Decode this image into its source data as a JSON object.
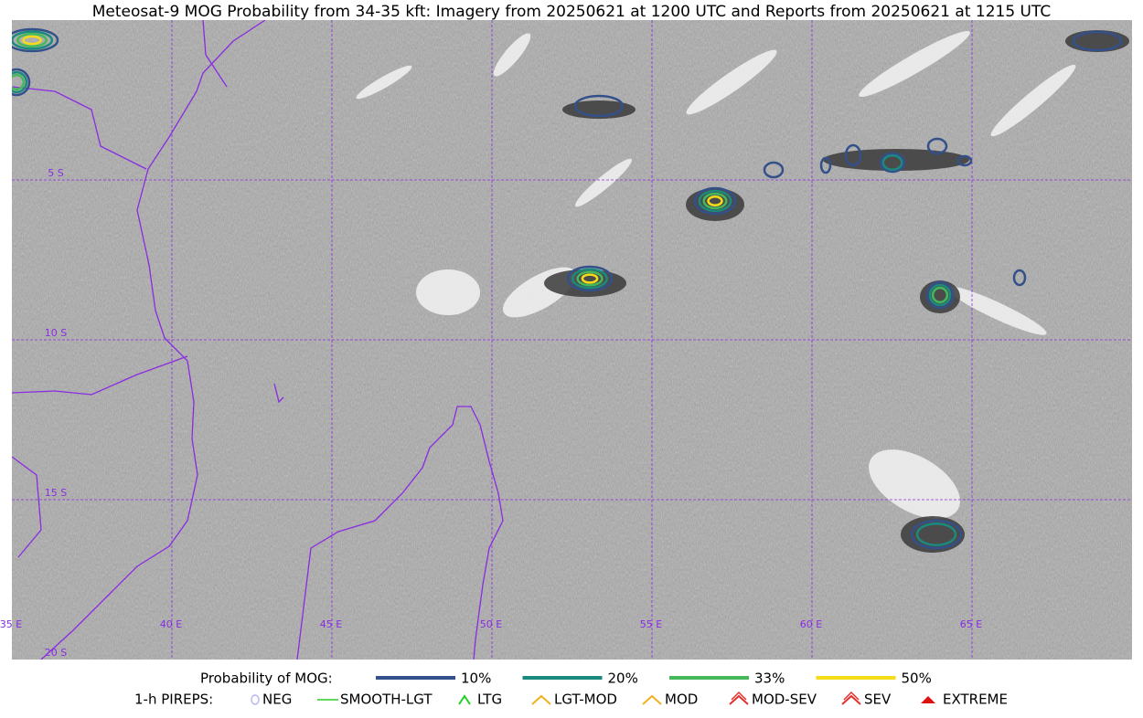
{
  "title": "Meteosat-9 MOG Probability from 34-35 kft: Imagery from 20250621 at 1200 UTC and Reports from 20250621 at 1215 UTC",
  "lat_labels": [
    "5 S",
    "10 S",
    "15 S",
    "20 S"
  ],
  "lon_labels": [
    "35 E",
    "40 E",
    "45 E",
    "50 E",
    "55 E",
    "60 E",
    "65 E"
  ],
  "probability_legend": {
    "title": "Probability of MOG:",
    "items": [
      {
        "label": "10%",
        "color": "#34508a"
      },
      {
        "label": "20%",
        "color": "#1b8a7e"
      },
      {
        "label": "33%",
        "color": "#45b85a"
      },
      {
        "label": "50%",
        "color": "#f5dc1a"
      }
    ]
  },
  "pirep_legend": {
    "title": "1-h PIREPS:",
    "items": [
      "NEG",
      "SMOOTH-LGT",
      "LTG",
      "LGT-MOD",
      "MOD",
      "MOD-SEV",
      "SEV",
      "EXTREME"
    ]
  }
}
